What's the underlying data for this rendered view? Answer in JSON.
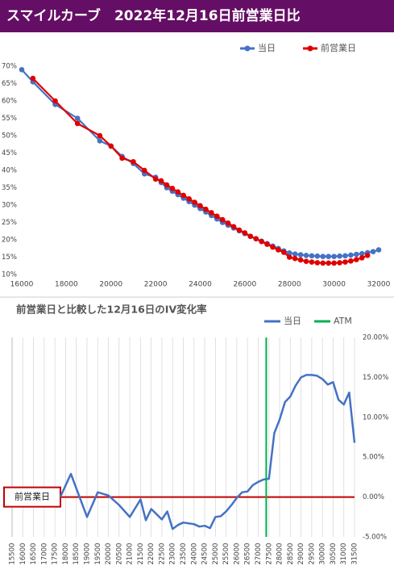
{
  "chart_data": [
    {
      "type": "line",
      "title": "スマイルカーブ　2022年12月16日前営業日比",
      "markers": true,
      "legend": "top-right",
      "xlim": [
        16000,
        32000
      ],
      "xticks": [
        16000,
        18000,
        20000,
        22000,
        24000,
        26000,
        28000,
        30000,
        32000
      ],
      "ylim": [
        10,
        70
      ],
      "yticks": [
        {
          "value": 10,
          "label": "10%"
        },
        {
          "value": 15,
          "label": "15%"
        },
        {
          "value": 20,
          "label": "20%"
        },
        {
          "value": 25,
          "label": "25%"
        },
        {
          "value": 30,
          "label": "30%"
        },
        {
          "value": 35,
          "label": "35%"
        },
        {
          "value": 40,
          "label": "40%"
        },
        {
          "value": 45,
          "label": "45%"
        },
        {
          "value": 50,
          "label": "50%"
        },
        {
          "value": 55,
          "label": "55%"
        },
        {
          "value": 60,
          "label": "60%"
        },
        {
          "value": 65,
          "label": "65%"
        },
        {
          "value": 70,
          "label": "70%"
        }
      ],
      "series": [
        {
          "name": "当日",
          "color": "#4472c4",
          "x": [
            16000,
            16500,
            17500,
            18500,
            19500,
            20000,
            20500,
            21000,
            21500,
            22000,
            22250,
            22500,
            22750,
            23000,
            23250,
            23500,
            23750,
            24000,
            24250,
            24500,
            24750,
            25000,
            25250,
            25500,
            25750,
            26000,
            26250,
            26500,
            26750,
            27000,
            27250,
            27500,
            27750,
            28000,
            28250,
            28500,
            28750,
            29000,
            29250,
            29500,
            29750,
            30000,
            30250,
            30500,
            30750,
            31000,
            31250,
            31500,
            31750,
            32000
          ],
          "values": [
            69,
            65.5,
            59,
            55,
            48.5,
            47,
            44,
            42,
            39,
            38,
            36.5,
            35,
            34,
            33,
            32,
            31,
            30,
            29,
            28,
            27,
            26,
            25,
            24.2,
            23.4,
            22.6,
            21.8,
            21,
            20.3,
            19.6,
            18.9,
            18.2,
            17.5,
            16.8,
            16.2,
            15.9,
            15.7,
            15.5,
            15.4,
            15.3,
            15.2,
            15.2,
            15.2,
            15.3,
            15.4,
            15.6,
            15.8,
            16,
            16.3,
            16.6,
            17.1
          ]
        },
        {
          "name": "前営業日",
          "color": "#e00000",
          "x": [
            16500,
            17500,
            18500,
            19500,
            20000,
            20500,
            21000,
            21500,
            22000,
            22250,
            22500,
            22750,
            23000,
            23250,
            23500,
            23750,
            24000,
            24250,
            24500,
            24750,
            25000,
            25250,
            25500,
            25750,
            26000,
            26250,
            26500,
            26750,
            27000,
            27250,
            27500,
            27750,
            28000,
            28250,
            28500,
            28750,
            29000,
            29250,
            29500,
            29750,
            30000,
            30250,
            30500,
            30750,
            31000,
            31250,
            31500
          ],
          "values": [
            66.5,
            60,
            53.5,
            50,
            47,
            43.5,
            42.5,
            40,
            37.5,
            37,
            35.8,
            34.8,
            33.8,
            32.8,
            31.8,
            30.8,
            29.8,
            28.8,
            27.8,
            26.8,
            25.8,
            24.8,
            23.8,
            22.8,
            22,
            21,
            20.3,
            19.5,
            18.7,
            17.9,
            17.1,
            16.4,
            15,
            14.6,
            14.2,
            13.8,
            13.6,
            13.4,
            13.3,
            13.3,
            13.3,
            13.4,
            13.6,
            13.9,
            14.3,
            14.8,
            15.5
          ]
        }
      ]
    },
    {
      "type": "line",
      "title": "前営業日と比較した12月16日のIV変化率",
      "markers": false,
      "legend": "top-right",
      "xlim": [
        15500,
        31500
      ],
      "xticks": [
        15500,
        16000,
        16500,
        17000,
        17500,
        18000,
        18500,
        19000,
        19500,
        20000,
        20500,
        21000,
        21500,
        22000,
        22500,
        23000,
        23500,
        24000,
        24500,
        25000,
        25500,
        26000,
        26500,
        27000,
        27500,
        28000,
        28500,
        29000,
        29500,
        30000,
        30500,
        31000,
        31500
      ],
      "grid": true,
      "y2lim": [
        -5,
        20
      ],
      "y2ticks": [
        {
          "value": -5,
          "label": "-5.00%"
        },
        {
          "value": 0,
          "label": "0.00%"
        },
        {
          "value": 5,
          "label": "5.00%"
        },
        {
          "value": 10,
          "label": "10.00%"
        },
        {
          "value": 15,
          "label": "15.00%"
        },
        {
          "value": 20,
          "label": "20.00%"
        }
      ],
      "reference_line": {
        "value": 0,
        "color": "#c00000",
        "label": "前営業日"
      },
      "series": [
        {
          "name": "当日",
          "color": "#4472c4",
          "axis": "y2",
          "x": [
            17750,
            18250,
            19000,
            19500,
            20000,
            20500,
            21000,
            21500,
            21750,
            22000,
            22500,
            22750,
            23000,
            23250,
            23500,
            24000,
            24250,
            24500,
            24750,
            25000,
            25250,
            25500,
            25750,
            26000,
            26250,
            26500,
            26750,
            27000,
            27250,
            27500,
            27750,
            28000,
            28250,
            28500,
            28750,
            29000,
            29250,
            29500,
            29750,
            30000,
            30250,
            30500,
            30750,
            31000,
            31250,
            31500
          ],
          "values": [
            0,
            2.9,
            -2.5,
            0.6,
            0.2,
            -1,
            -2.5,
            -0.3,
            -2.9,
            -1.5,
            -2.8,
            -1.8,
            -4,
            -3.5,
            -3.2,
            -3.4,
            -3.7,
            -3.6,
            -3.9,
            -2.5,
            -2.4,
            -1.8,
            -1,
            -0.1,
            0.6,
            0.7,
            1.5,
            1.9,
            2.2,
            2.3,
            8,
            9.7,
            11.9,
            12.6,
            14,
            15,
            15.3,
            15.3,
            15.2,
            14.8,
            14.1,
            14.4,
            12.2,
            11.6,
            13.1,
            6.8
          ]
        },
        {
          "name": "ATM",
          "color": "#00b050",
          "axis": "y2",
          "x": [
            27375
          ]
        }
      ]
    }
  ]
}
